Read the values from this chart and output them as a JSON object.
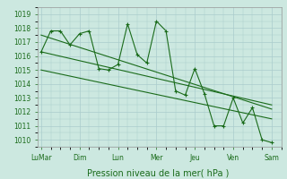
{
  "background_color": "#cce8e0",
  "grid_color": "#aacccc",
  "line_color": "#1a6b1a",
  "marker_color": "#1a6b1a",
  "xlabel": "Pression niveau de la mer( hPa )",
  "xlabel_fontsize": 7,
  "ylim": [
    1009.5,
    1019.5
  ],
  "yticks": [
    1010,
    1011,
    1012,
    1013,
    1014,
    1015,
    1016,
    1017,
    1018,
    1019
  ],
  "xtick_labels": [
    "LuMar",
    "Dim",
    "Lun",
    "Mer",
    "Jeu",
    "Ven",
    "Sam"
  ],
  "xtick_positions": [
    0,
    2,
    4,
    6,
    8,
    10,
    12
  ],
  "series1_x": [
    0,
    0.5,
    1,
    1.5,
    2,
    2.5,
    3,
    3.5,
    4,
    4.5,
    5,
    5.5,
    6,
    6.5,
    7,
    7.5,
    8,
    8.5,
    9,
    9.5,
    10,
    10.5,
    11,
    11.5,
    12
  ],
  "series1_y": [
    1016.3,
    1017.8,
    1017.8,
    1016.8,
    1017.6,
    1017.8,
    1015.1,
    1015.0,
    1015.4,
    1018.3,
    1016.1,
    1015.5,
    1018.5,
    1017.8,
    1013.5,
    1013.2,
    1015.1,
    1013.3,
    1011.0,
    1011.0,
    1013.0,
    1011.2,
    1012.3,
    1010.0,
    1009.8
  ],
  "series2_x": [
    0,
    12
  ],
  "series2_y": [
    1016.3,
    1012.5
  ],
  "series3_x": [
    0,
    12
  ],
  "series3_y": [
    1017.5,
    1012.2
  ],
  "series4_x": [
    0,
    12
  ],
  "series4_y": [
    1015.0,
    1011.5
  ]
}
